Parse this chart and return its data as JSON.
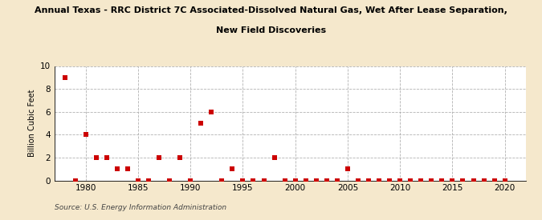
{
  "title_line1": "Annual Texas - RRC District 7C Associated-Dissolved Natural Gas, Wet After Lease Separation,",
  "title_line2": "New Field Discoveries",
  "ylabel": "Billion Cubic Feet",
  "source": "Source: U.S. Energy Information Administration",
  "background_color": "#f5e8cc",
  "plot_background_color": "#ffffff",
  "marker_color": "#cc0000",
  "xlim": [
    1977,
    2022
  ],
  "ylim": [
    0,
    10
  ],
  "xticks": [
    1980,
    1985,
    1990,
    1995,
    2000,
    2005,
    2010,
    2015,
    2020
  ],
  "yticks": [
    0,
    2,
    4,
    6,
    8,
    10
  ],
  "data_years": [
    1978,
    1979,
    1980,
    1981,
    1982,
    1983,
    1984,
    1985,
    1986,
    1987,
    1988,
    1989,
    1990,
    1991,
    1992,
    1993,
    1994,
    1995,
    1996,
    1997,
    1998,
    1999,
    2000,
    2001,
    2002,
    2003,
    2004,
    2005,
    2006,
    2007,
    2008,
    2009,
    2010,
    2011,
    2012,
    2013,
    2014,
    2015,
    2016,
    2017,
    2018,
    2019,
    2020
  ],
  "data_values": [
    9.0,
    0.0,
    4.0,
    2.0,
    2.0,
    1.0,
    1.0,
    0.0,
    0.0,
    2.0,
    0.0,
    2.0,
    0.0,
    5.0,
    6.0,
    0.0,
    1.0,
    0.0,
    0.0,
    0.0,
    2.0,
    0.0,
    0.0,
    0.0,
    0.0,
    0.0,
    0.0,
    1.0,
    0.0,
    0.0,
    0.0,
    0.0,
    0.0,
    0.0,
    0.0,
    0.0,
    0.0,
    0.0,
    0.0,
    0.0,
    0.0,
    0.0,
    0.0
  ]
}
